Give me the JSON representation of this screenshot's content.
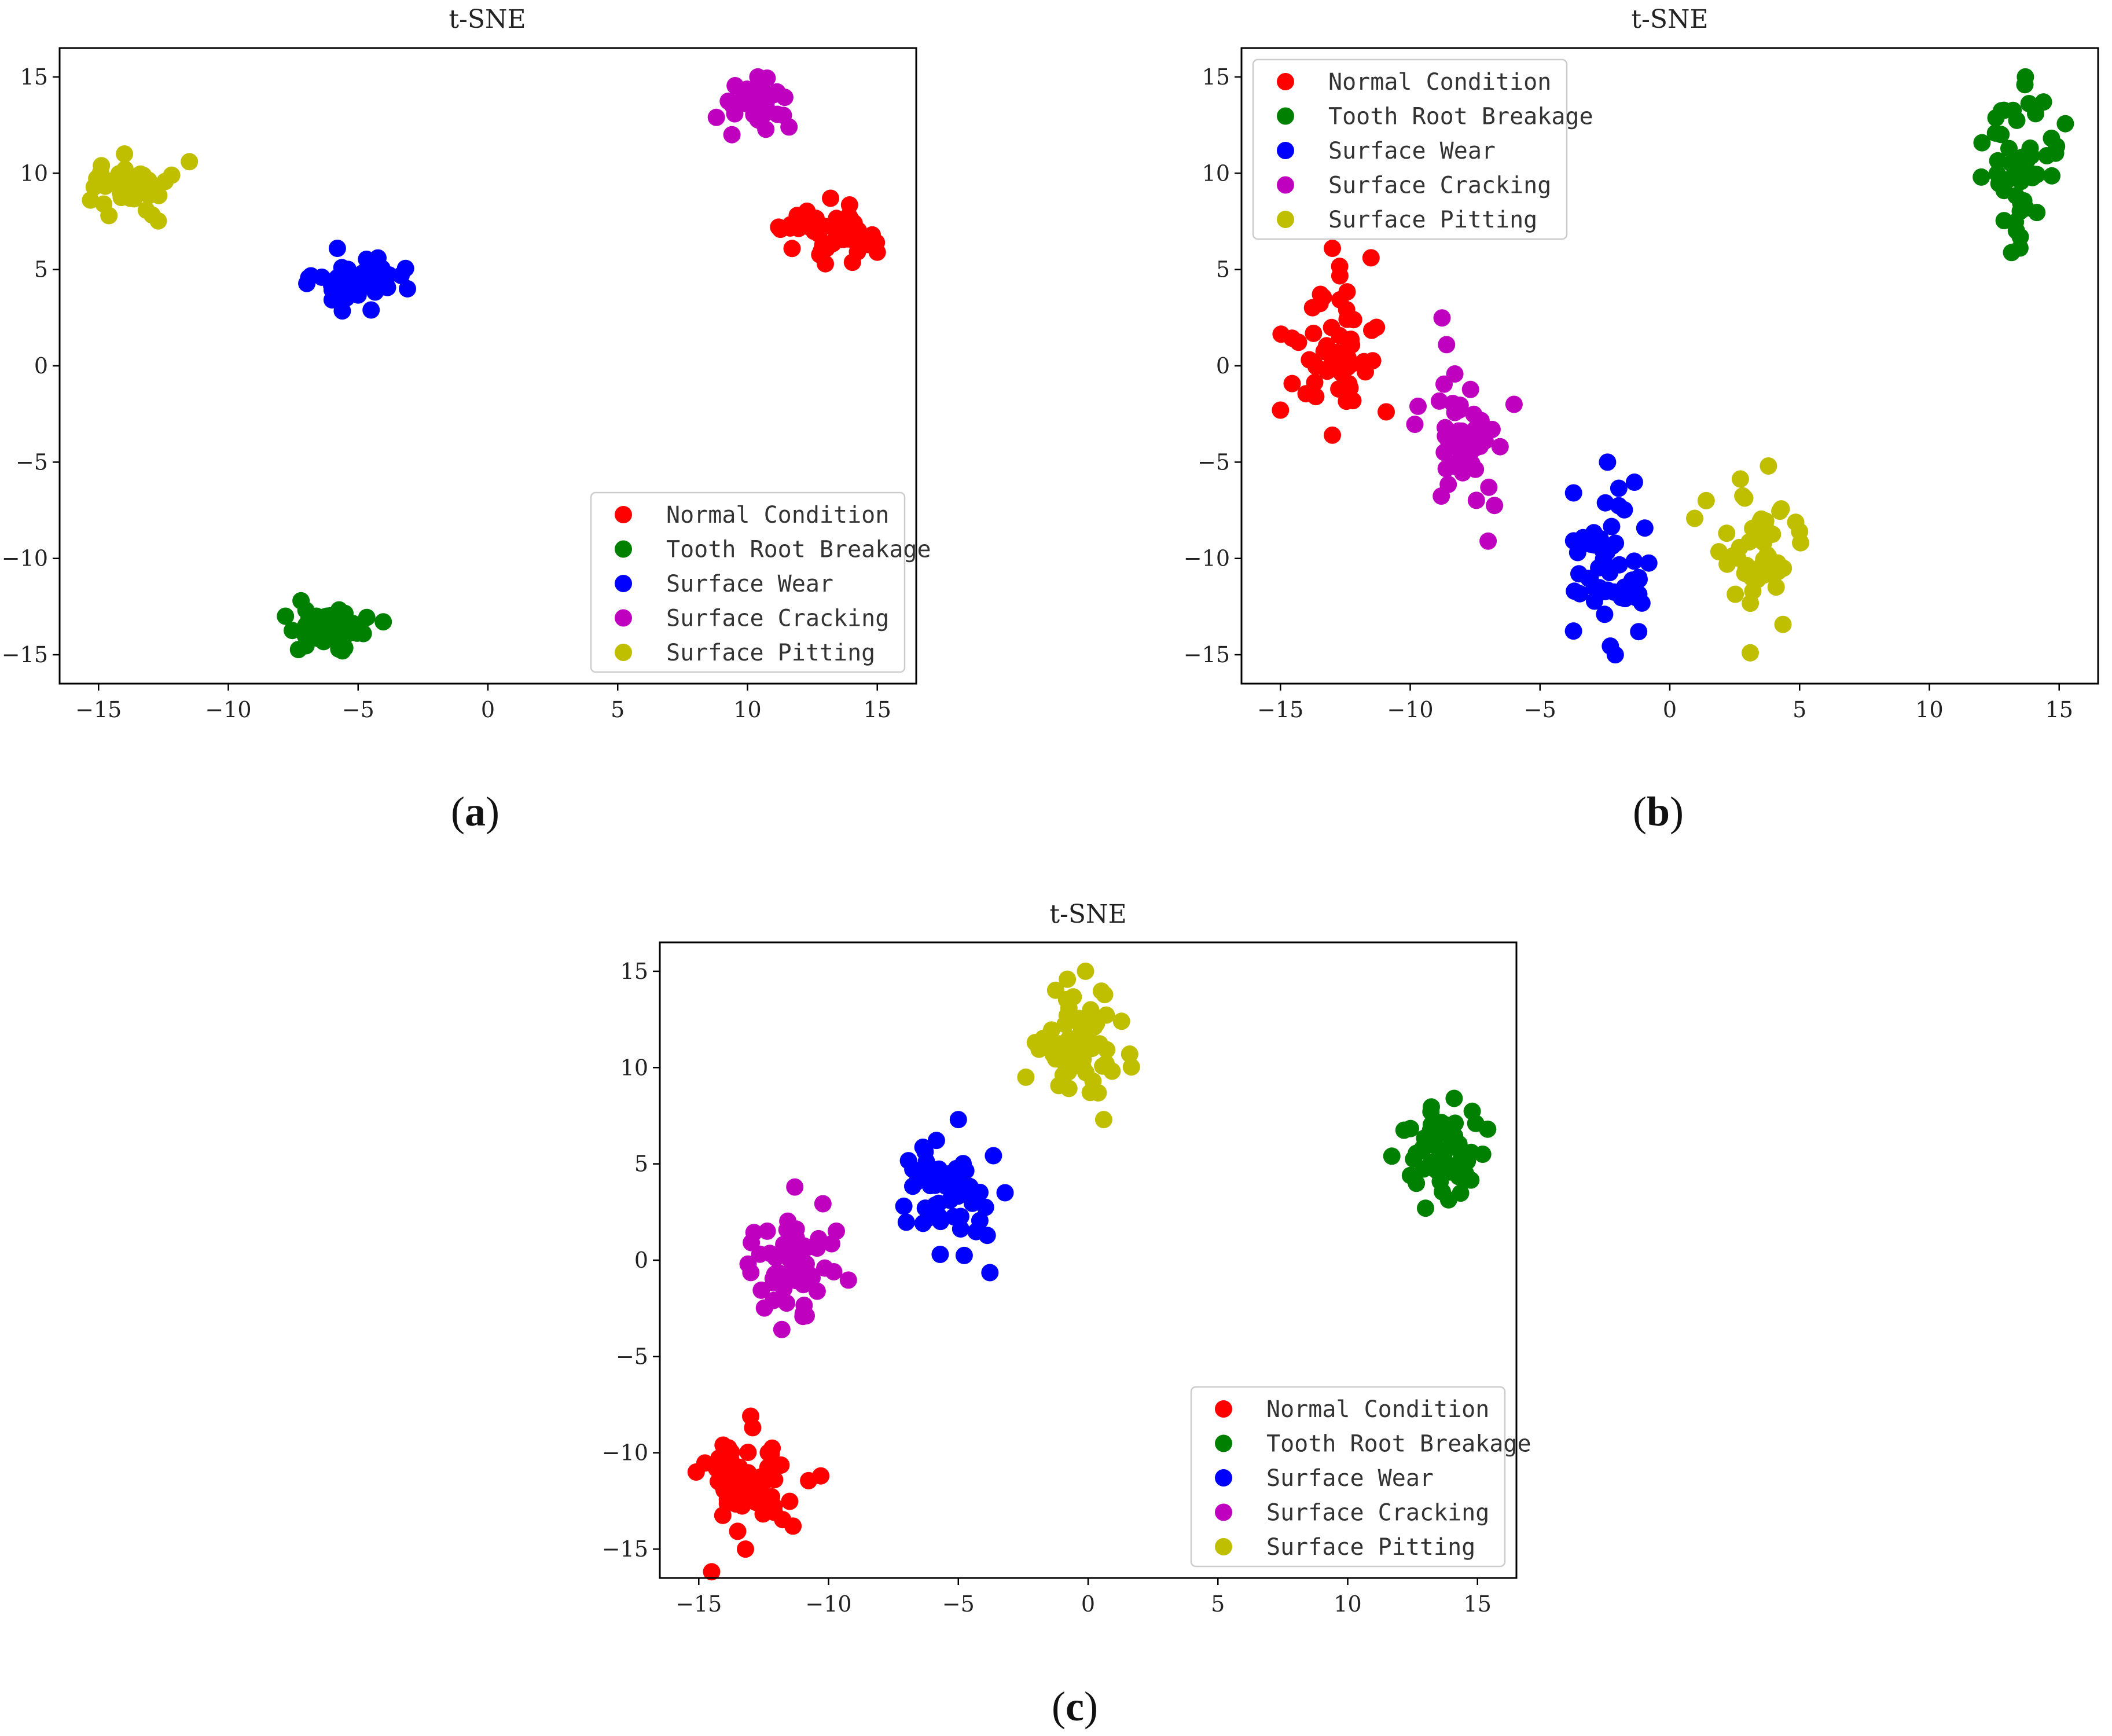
{
  "colors": {
    "normal": "#ff0000",
    "tooth_root": "#008000",
    "wear": "#0000ff",
    "cracking": "#bf00bf",
    "pitting": "#bfbf00",
    "axes": "#000000",
    "legend_border": "#cccccc"
  },
  "chart_data": [
    {
      "id": "a",
      "type": "scatter",
      "title": "t-SNE",
      "caption": "a",
      "xlabel": "",
      "ylabel": "",
      "xlim": [
        -16.5,
        16.5
      ],
      "ylim": [
        -16.5,
        16.5
      ],
      "xticks": [
        -15,
        -10,
        -5,
        0,
        5,
        10,
        15
      ],
      "xtick_labels": [
        "−15",
        "−10",
        "−5",
        "0",
        "5",
        "10",
        "15"
      ],
      "yticks": [
        -15,
        -10,
        -5,
        0,
        5,
        10,
        15
      ],
      "ytick_labels": [
        "−15",
        "−10",
        "−5",
        "0",
        "5",
        "10",
        "15"
      ],
      "legend": {
        "location": "lower right",
        "entries": [
          "Normal Condition",
          "Tooth Root Breakage",
          "Surface Wear",
          "Surface Cracking",
          "Surface Pitting"
        ]
      },
      "series": [
        {
          "name": "Normal Condition",
          "color_key": "normal",
          "center": [
            13.2,
            7.0
          ],
          "spread": [
            0.85,
            0.65
          ],
          "count": 45,
          "extremes": [
            [
              15.0,
              5.9
            ],
            [
              11.2,
              7.2
            ],
            [
              13.2,
              8.7
            ],
            [
              13.0,
              5.3
            ]
          ]
        },
        {
          "name": "Tooth Root Breakage",
          "color_key": "tooth_root",
          "center": [
            -6.2,
            -13.6
          ],
          "spread": [
            0.7,
            0.5
          ],
          "count": 45,
          "extremes": [
            [
              -7.8,
              -13.0
            ],
            [
              -4.8,
              -13.9
            ],
            [
              -7.2,
              -12.2
            ],
            [
              -5.6,
              -14.8
            ]
          ]
        },
        {
          "name": "Surface Wear",
          "color_key": "wear",
          "center": [
            -4.9,
            4.5
          ],
          "spread": [
            0.8,
            0.55
          ],
          "count": 45,
          "extremes": [
            [
              -6.4,
              4.6
            ],
            [
              -3.1,
              4.0
            ],
            [
              -5.8,
              6.1
            ],
            [
              -4.5,
              2.9
            ]
          ]
        },
        {
          "name": "Surface Cracking",
          "color_key": "cracking",
          "center": [
            10.3,
            13.6
          ],
          "spread": [
            0.6,
            0.55
          ],
          "count": 45,
          "extremes": [
            [
              8.8,
              12.9
            ],
            [
              11.6,
              12.4
            ],
            [
              10.4,
              15.0
            ],
            [
              9.4,
              12.0
            ]
          ]
        },
        {
          "name": "Surface Pitting",
          "color_key": "pitting",
          "center": [
            -13.8,
            9.4
          ],
          "spread": [
            0.7,
            0.65
          ],
          "count": 45,
          "extremes": [
            [
              -11.5,
              10.6
            ],
            [
              -14.8,
              8.4
            ],
            [
              -14.0,
              11.0
            ],
            [
              -14.6,
              7.8
            ]
          ]
        }
      ]
    },
    {
      "id": "b",
      "type": "scatter",
      "title": "t-SNE",
      "caption": "b",
      "xlabel": "",
      "ylabel": "",
      "xlim": [
        -16.5,
        16.5
      ],
      "ylim": [
        -16.5,
        16.5
      ],
      "xticks": [
        -15,
        -10,
        -5,
        0,
        5,
        10,
        15
      ],
      "xtick_labels": [
        "−15",
        "−10",
        "−5",
        "0",
        "5",
        "10",
        "15"
      ],
      "yticks": [
        -15,
        -10,
        -5,
        0,
        5,
        10,
        15
      ],
      "ytick_labels": [
        "−15",
        "−10",
        "−5",
        "0",
        "5",
        "10",
        "15"
      ],
      "legend": {
        "location": "upper left",
        "entries": [
          "Normal Condition",
          "Tooth Root Breakage",
          "Surface Wear",
          "Surface Cracking",
          "Surface Pitting"
        ]
      },
      "series": [
        {
          "name": "Normal Condition",
          "color_key": "normal",
          "center": [
            -13.0,
            0.8
          ],
          "spread": [
            0.9,
            2.0
          ],
          "count": 50,
          "extremes": [
            [
              -15.0,
              -2.3
            ],
            [
              -11.3,
              2.0
            ],
            [
              -13.0,
              6.1
            ],
            [
              -13.0,
              -3.6
            ]
          ]
        },
        {
          "name": "Tooth Root Breakage",
          "color_key": "tooth_root",
          "center": [
            13.4,
            10.2
          ],
          "spread": [
            0.7,
            1.6
          ],
          "count": 50,
          "extremes": [
            [
              12.0,
              9.8
            ],
            [
              14.9,
              11.4
            ],
            [
              13.7,
              15.0
            ],
            [
              13.5,
              6.7
            ]
          ]
        },
        {
          "name": "Surface Wear",
          "color_key": "wear",
          "center": [
            -2.4,
            -10.0
          ],
          "spread": [
            0.7,
            1.8
          ],
          "count": 50,
          "extremes": [
            [
              -3.5,
              -10.8
            ],
            [
              -1.2,
              -13.8
            ],
            [
              -2.4,
              -5.0
            ],
            [
              -2.1,
              -15.0
            ]
          ]
        },
        {
          "name": "Surface Cracking",
          "color_key": "cracking",
          "center": [
            -8.1,
            -3.8
          ],
          "spread": [
            0.8,
            1.9
          ],
          "count": 50,
          "extremes": [
            [
              -9.7,
              -2.1
            ],
            [
              -6.0,
              -2.0
            ],
            [
              -8.6,
              1.1
            ],
            [
              -7.0,
              -9.1
            ]
          ]
        },
        {
          "name": "Surface Pitting",
          "color_key": "pitting",
          "center": [
            3.3,
            -9.5
          ],
          "spread": [
            0.8,
            2.0
          ],
          "count": 50,
          "extremes": [
            [
              1.4,
              -7.0
            ],
            [
              5.0,
              -8.6
            ],
            [
              3.8,
              -5.2
            ],
            [
              3.1,
              -14.9
            ]
          ]
        }
      ]
    },
    {
      "id": "c",
      "type": "scatter",
      "title": "t-SNE",
      "caption": "c",
      "xlabel": "",
      "ylabel": "",
      "xlim": [
        -16.5,
        16.5
      ],
      "ylim": [
        -16.5,
        16.5
      ],
      "xticks": [
        -15,
        -10,
        -5,
        0,
        5,
        10,
        15
      ],
      "xtick_labels": [
        "−15",
        "−10",
        "−5",
        "0",
        "5",
        "10",
        "15"
      ],
      "yticks": [
        -15,
        -10,
        -5,
        0,
        5,
        10,
        15
      ],
      "ytick_labels": [
        "−15",
        "−10",
        "−5",
        "0",
        "5",
        "10",
        "15"
      ],
      "legend": {
        "location": "lower right",
        "entries": [
          "Normal Condition",
          "Tooth Root Breakage",
          "Surface Wear",
          "Surface Cracking",
          "Surface Pitting"
        ]
      },
      "series": [
        {
          "name": "Normal Condition",
          "color_key": "normal",
          "center": [
            -13.0,
            -11.3
          ],
          "spread": [
            1.0,
            1.4
          ],
          "count": 55,
          "extremes": [
            [
              -15.1,
              -11.0
            ],
            [
              -10.3,
              -11.2
            ],
            [
              -13.0,
              -8.1
            ],
            [
              -13.2,
              -15.0
            ]
          ]
        },
        {
          "name": "Tooth Root Breakage",
          "color_key": "tooth_root",
          "center": [
            13.7,
            5.5
          ],
          "spread": [
            0.8,
            1.2
          ],
          "count": 55,
          "extremes": [
            [
              11.7,
              5.4
            ],
            [
              15.2,
              5.5
            ],
            [
              14.1,
              8.4
            ],
            [
              13.0,
              2.7
            ]
          ]
        },
        {
          "name": "Surface Wear",
          "color_key": "wear",
          "center": [
            -5.3,
            3.6
          ],
          "spread": [
            0.9,
            1.3
          ],
          "count": 55,
          "extremes": [
            [
              -7.1,
              2.8
            ],
            [
              -3.2,
              3.5
            ],
            [
              -5.0,
              7.3
            ],
            [
              -5.7,
              0.3
            ]
          ]
        },
        {
          "name": "Surface Cracking",
          "color_key": "cracking",
          "center": [
            -11.6,
            0.0
          ],
          "spread": [
            0.8,
            1.4
          ],
          "count": 55,
          "extremes": [
            [
              -13.1,
              -0.2
            ],
            [
              -9.8,
              -0.6
            ],
            [
              -11.3,
              3.8
            ],
            [
              -11.8,
              -3.6
            ]
          ]
        },
        {
          "name": "Surface Pitting",
          "color_key": "pitting",
          "center": [
            -0.2,
            10.9
          ],
          "spread": [
            0.8,
            1.4
          ],
          "count": 55,
          "extremes": [
            [
              -2.4,
              9.5
            ],
            [
              1.6,
              10.7
            ],
            [
              -0.1,
              15.0
            ],
            [
              0.6,
              7.3
            ]
          ]
        }
      ]
    }
  ]
}
